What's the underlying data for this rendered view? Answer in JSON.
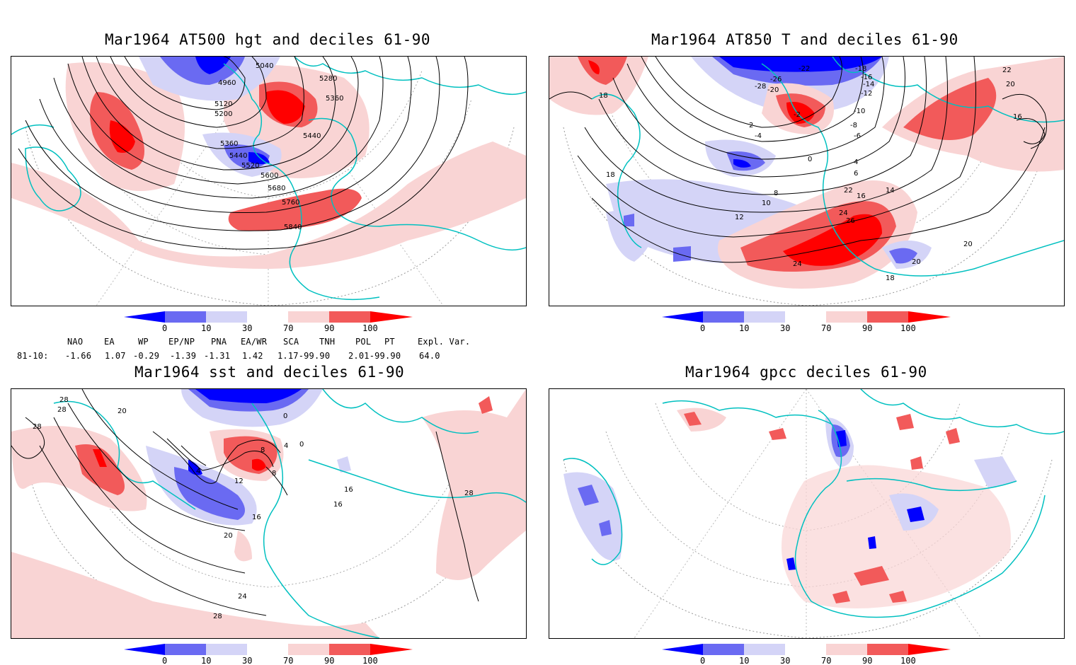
{
  "colors": {
    "deep_blue": "#0000ff",
    "mid_blue": "#6a6af2",
    "light_blue": "#d4d4f7",
    "light_red": "#f9d4d4",
    "mid_red": "#f25a5a",
    "deep_red": "#ff0000",
    "coast": "#00c0c0",
    "contour": "#000000"
  },
  "colorbar_ticks": [
    "0",
    "10",
    "30",
    "70",
    "90",
    "100"
  ],
  "panels": [
    {
      "title": "Mar1964 AT500 hgt and deciles 61-90",
      "contour_labels": [
        "4960",
        "5040",
        "5120",
        "5200",
        "5280",
        "5360",
        "5360",
        "5440",
        "5440",
        "5520",
        "5600",
        "5680",
        "5760",
        "5840"
      ]
    },
    {
      "title": "Mar1964 AT850 T and deciles 61-90",
      "contour_labels": [
        "-28",
        "-26",
        "-22",
        "-20",
        "-18",
        "-16",
        "-14",
        "-12",
        "-10",
        "-8",
        "-6",
        "-4",
        "-2",
        "0",
        "2",
        "4",
        "6",
        "8",
        "10",
        "12",
        "14",
        "16",
        "16",
        "18",
        "18",
        "18",
        "20",
        "20",
        "20",
        "22",
        "22",
        "24",
        "24",
        "26"
      ]
    },
    {
      "title": "Mar1964 sst and deciles 61-90",
      "contour_labels": [
        "28",
        "28",
        "28",
        "28",
        "28",
        "20",
        "20",
        "24",
        "16",
        "16",
        "16",
        "12",
        "8",
        "8",
        "4",
        "4",
        "0",
        "0"
      ]
    },
    {
      "title": "Mar1964 gpcc deciles 61-90",
      "contour_labels": []
    }
  ],
  "indices": {
    "headers": [
      "NAO",
      "EA",
      "WP",
      "EP/NP",
      "PNA",
      "EA/WR",
      "SCA",
      "TNH",
      "POL",
      "PT",
      "Expl. Var."
    ],
    "row_label": "81-10:",
    "values": [
      "-1.66",
      "1.07",
      "-0.29",
      "-1.39",
      "-1.31",
      "1.42",
      "1.17-99.90",
      "2.01-99.90",
      "64.0"
    ]
  }
}
